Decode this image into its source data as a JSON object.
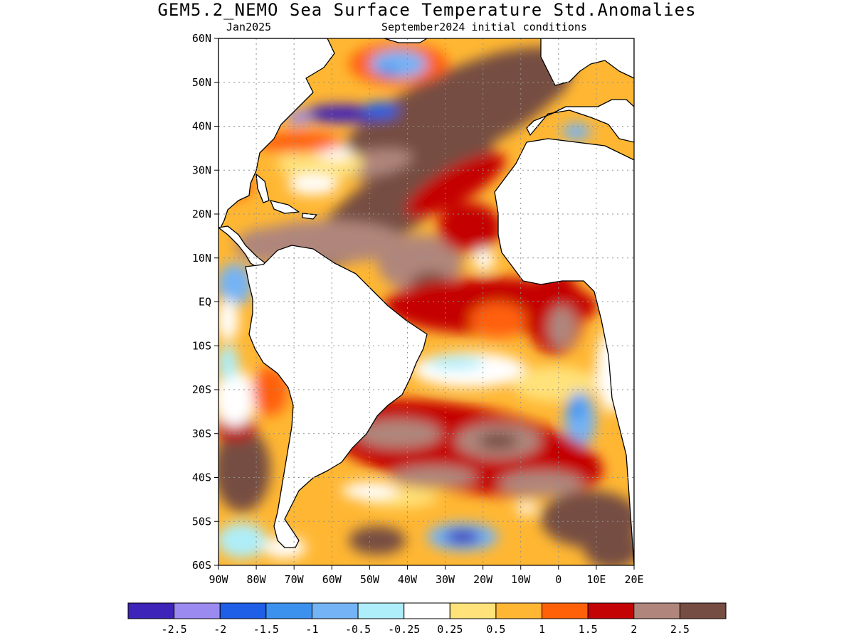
{
  "title": "GEM5.2_NEMO Sea Surface Temperature Std.Anomalies",
  "subtitle_left": "Jan2025",
  "subtitle_right": "September2024 initial conditions",
  "map": {
    "lon_range": [
      -90,
      20
    ],
    "lat_range": [
      -60,
      60
    ],
    "grid": true,
    "lat_ticks": [
      {
        "value": 60,
        "label": "60N"
      },
      {
        "value": 50,
        "label": "50N"
      },
      {
        "value": 40,
        "label": "40N"
      },
      {
        "value": 30,
        "label": "30N"
      },
      {
        "value": 20,
        "label": "20N"
      },
      {
        "value": 10,
        "label": "10N"
      },
      {
        "value": 0,
        "label": "EQ"
      },
      {
        "value": -10,
        "label": "10S"
      },
      {
        "value": -20,
        "label": "20S"
      },
      {
        "value": -30,
        "label": "30S"
      },
      {
        "value": -40,
        "label": "40S"
      },
      {
        "value": -50,
        "label": "50S"
      },
      {
        "value": -60,
        "label": "60S"
      }
    ],
    "lon_ticks": [
      {
        "value": -90,
        "label": "90W"
      },
      {
        "value": -80,
        "label": "80W"
      },
      {
        "value": -70,
        "label": "70W"
      },
      {
        "value": -60,
        "label": "60W"
      },
      {
        "value": -50,
        "label": "50W"
      },
      {
        "value": -40,
        "label": "40W"
      },
      {
        "value": -30,
        "label": "30W"
      },
      {
        "value": -20,
        "label": "20W"
      },
      {
        "value": -10,
        "label": "10W"
      },
      {
        "value": 0,
        "label": "0"
      },
      {
        "value": 10,
        "label": "10E"
      },
      {
        "value": 20,
        "label": "20E"
      }
    ]
  },
  "colorbar": {
    "colors": [
      "#3e24b8",
      "#9b8bf0",
      "#1f5ee6",
      "#3c91ef",
      "#74b3f5",
      "#aeeefa",
      "#ffffff",
      "#ffe27a",
      "#ffb733",
      "#ff6109",
      "#c40404",
      "#b0867c",
      "#764d43"
    ],
    "labels": [
      "-2.5",
      "-2",
      "-1.5",
      "-1",
      "-0.5",
      "-0.25",
      "0.25",
      "0.5",
      "1",
      "1.5",
      "2",
      "2.5"
    ]
  },
  "colors": {
    "land": "#ffffff",
    "coastline": "#000000",
    "grid": "#808080"
  }
}
